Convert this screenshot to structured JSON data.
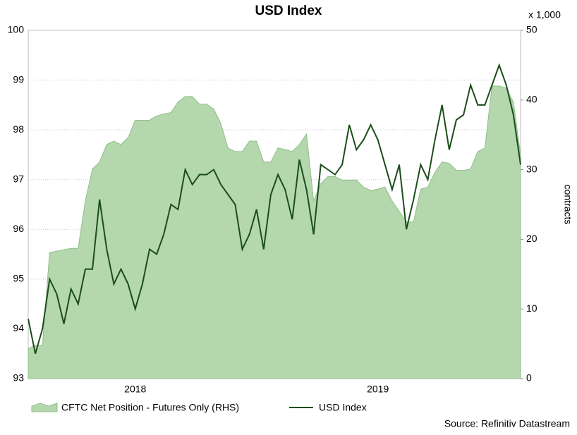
{
  "chart_data": {
    "type": "combo",
    "title": "USD Index",
    "y2_unit": "x 1,000",
    "y2_label": "contracts",
    "source": "Source: Refinitiv Datastream",
    "categories": [
      null,
      null,
      null,
      null,
      null,
      null,
      null,
      null,
      null,
      null,
      null,
      null,
      null,
      null,
      null,
      "2018",
      null,
      null,
      null,
      null,
      null,
      null,
      null,
      null,
      null,
      null,
      null,
      null,
      null,
      null,
      null,
      null,
      null,
      null,
      null,
      null,
      null,
      null,
      null,
      null,
      null,
      null,
      null,
      null,
      null,
      null,
      null,
      null,
      null,
      "2019",
      null,
      null,
      null,
      null,
      null,
      null,
      null,
      null,
      null,
      null,
      null,
      null,
      null,
      null,
      null,
      null,
      null,
      null,
      null,
      null
    ],
    "ylim": [
      93,
      100
    ],
    "yticks": [
      93,
      94,
      95,
      96,
      97,
      98,
      99,
      100
    ],
    "y2lim": [
      0,
      50
    ],
    "y2ticks": [
      0,
      10,
      20,
      30,
      40,
      50
    ],
    "grid": true,
    "series": [
      {
        "name": "CFTC Net Position - Futures Only (RHS)",
        "type": "area",
        "axis": "y2",
        "color": "#b4d7ae",
        "values": [
          4.3,
          4.8,
          4.8,
          18.1,
          18.3,
          18.5,
          18.7,
          18.7,
          25.5,
          30.1,
          31.1,
          33.6,
          34.1,
          33.6,
          34.6,
          37.1,
          37.1,
          37.1,
          37.7,
          38.0,
          38.2,
          39.7,
          40.5,
          40.5,
          39.4,
          39.4,
          38.7,
          36.6,
          33.1,
          32.6,
          32.6,
          34.1,
          34.1,
          31.1,
          31.1,
          33.1,
          32.9,
          32.6,
          33.6,
          35.1,
          25.5,
          28.0,
          29.0,
          29.0,
          28.5,
          28.5,
          28.5,
          27.5,
          27.0,
          27.2,
          27.5,
          25.5,
          24.0,
          22.5,
          22.5,
          27.2,
          27.5,
          29.6,
          31.1,
          30.9,
          29.9,
          29.9,
          30.1,
          32.6,
          33.1,
          42.0,
          42.0,
          41.7,
          39.7,
          32.1
        ]
      },
      {
        "name": "USD Index",
        "type": "line",
        "color": "#1b4d1b",
        "values": [
          94.2,
          93.5,
          94.0,
          95.0,
          94.7,
          94.1,
          94.8,
          94.5,
          95.2,
          95.2,
          96.6,
          95.6,
          94.9,
          95.2,
          94.9,
          94.4,
          94.9,
          95.6,
          95.5,
          95.9,
          96.5,
          96.4,
          97.2,
          96.9,
          97.1,
          97.1,
          97.2,
          96.9,
          96.7,
          96.5,
          95.6,
          95.9,
          96.4,
          95.6,
          96.7,
          97.1,
          96.8,
          96.2,
          97.4,
          96.8,
          95.9,
          97.3,
          97.2,
          97.1,
          97.3,
          98.1,
          97.6,
          97.8,
          98.1,
          97.8,
          97.3,
          96.8,
          97.3,
          96.0,
          96.6,
          97.3,
          97.0,
          97.8,
          98.5,
          97.6,
          98.2,
          98.3,
          98.9,
          98.5,
          98.5,
          98.9,
          99.3,
          98.9,
          98.3,
          97.3
        ]
      }
    ]
  }
}
